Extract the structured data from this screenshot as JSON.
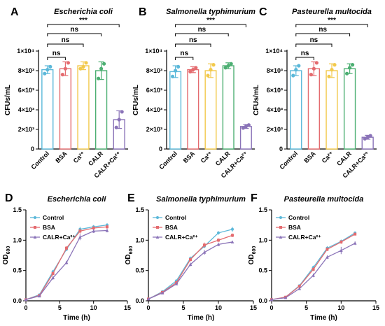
{
  "colors": {
    "Control": "#5bb8d9",
    "BSA": "#e46b6f",
    "Ca2+": "#f2c94c",
    "CALR": "#4caf72",
    "CALR+Ca2+": "#8a73b8"
  },
  "chart_data": [
    {
      "type": "bar",
      "panel": "A",
      "title": "Escherichia coli",
      "ylabel": "CFUs/mL",
      "ylim": [
        0,
        10000
      ],
      "yticks": [
        "0",
        "2×10³",
        "4×10³",
        "6×10³",
        "8×10³",
        "1×10⁴"
      ],
      "categories": [
        "Control",
        "BSA",
        "Ca²⁺",
        "CALR",
        "CALR+Ca²⁺"
      ],
      "values": [
        8100,
        8200,
        8500,
        8000,
        3000
      ],
      "errors": [
        400,
        700,
        400,
        900,
        900
      ],
      "points": [
        [
          7700,
          8100,
          8400
        ],
        [
          7600,
          8200,
          8800
        ],
        [
          8200,
          8400,
          8800
        ],
        [
          7200,
          8200,
          8700
        ],
        [
          2200,
          3000,
          3800
        ]
      ],
      "significance": [
        "ns",
        "ns",
        "ns",
        "***"
      ]
    },
    {
      "type": "bar",
      "panel": "B",
      "title": "Salmonella typhimurium",
      "ylabel": "CFUs/mL",
      "ylim": [
        0,
        10000
      ],
      "yticks": [
        "0",
        "2×10³",
        "4×10³",
        "6×10³",
        "8×10³",
        "1×10⁴"
      ],
      "categories": [
        "Control",
        "BSA",
        "Ca²⁺",
        "CALR",
        "CALR+Ca²⁺"
      ],
      "values": [
        7900,
        8100,
        8000,
        8500,
        2300
      ],
      "errors": [
        600,
        300,
        700,
        300,
        200
      ],
      "points": [
        [
          7400,
          8000,
          8400
        ],
        [
          7900,
          8100,
          8300
        ],
        [
          7500,
          8100,
          8600
        ],
        [
          8300,
          8500,
          8700
        ],
        [
          2150,
          2300,
          2450
        ]
      ],
      "significance": [
        "ns",
        "ns",
        "ns",
        "***"
      ]
    },
    {
      "type": "bar",
      "panel": "C",
      "title": "Pasteurella multocida",
      "ylabel": "CFUs/mL",
      "ylim": [
        0,
        10000
      ],
      "yticks": [
        "0",
        "2×10³",
        "4×10³",
        "6×10³",
        "8×10³",
        "1×10⁴"
      ],
      "categories": [
        "Control",
        "BSA",
        "Ca²⁺",
        "CALR",
        "CALR+Ca²⁺"
      ],
      "values": [
        8000,
        8200,
        8000,
        8200,
        1200
      ],
      "errors": [
        500,
        700,
        700,
        500,
        200
      ],
      "points": [
        [
          7500,
          8100,
          8500
        ],
        [
          7600,
          8200,
          8800
        ],
        [
          7400,
          8100,
          8600
        ],
        [
          7700,
          8300,
          8600
        ],
        [
          1050,
          1200,
          1350
        ]
      ],
      "significance": [
        "ns",
        "ns",
        "ns",
        "***"
      ]
    },
    {
      "type": "line",
      "panel": "D",
      "title": "Escherichia coli",
      "xlabel": "Time (h)",
      "ylabel": "OD600",
      "xlim": [
        0,
        15
      ],
      "ylim": [
        0,
        1.5
      ],
      "xticks": [
        "0",
        "5",
        "10",
        "15"
      ],
      "yticks": [
        "0.0",
        "0.5",
        "1.0",
        "1.5"
      ],
      "x": [
        0,
        2,
        4,
        6,
        8,
        10,
        12
      ],
      "series": [
        {
          "name": "Control",
          "values": [
            0.02,
            0.1,
            0.48,
            0.85,
            1.18,
            1.22,
            1.25
          ],
          "errors": [
            0.01,
            0.01,
            0.03,
            0.03,
            0.04,
            0.03,
            0.03
          ]
        },
        {
          "name": "BSA",
          "values": [
            0.02,
            0.09,
            0.45,
            0.87,
            1.15,
            1.2,
            1.22
          ],
          "errors": [
            0.01,
            0.01,
            0.03,
            0.03,
            0.04,
            0.03,
            0.03
          ]
        },
        {
          "name": "CALR+Ca²⁺",
          "values": [
            0.02,
            0.08,
            0.38,
            0.63,
            1.05,
            1.15,
            1.16
          ],
          "errors": [
            0.01,
            0.01,
            0.03,
            0.03,
            0.05,
            0.03,
            0.03
          ]
        }
      ]
    },
    {
      "type": "line",
      "panel": "E",
      "title": "Salmonella typhimurium",
      "xlabel": "Time (h)",
      "ylabel": "OD600",
      "xlim": [
        0,
        15
      ],
      "ylim": [
        0,
        1.5
      ],
      "xticks": [
        "0",
        "5",
        "10",
        "15"
      ],
      "yticks": [
        "0.0",
        "0.5",
        "1.0",
        "1.5"
      ],
      "x": [
        0,
        2,
        4,
        6,
        8,
        10,
        12
      ],
      "series": [
        {
          "name": "Control",
          "values": [
            0.03,
            0.15,
            0.33,
            0.7,
            0.9,
            1.12,
            1.18
          ],
          "errors": [
            0.01,
            0.01,
            0.02,
            0.03,
            0.03,
            0.03,
            0.04
          ]
        },
        {
          "name": "BSA",
          "values": [
            0.03,
            0.14,
            0.3,
            0.68,
            0.92,
            1.0,
            1.08
          ],
          "errors": [
            0.01,
            0.01,
            0.02,
            0.03,
            0.04,
            0.03,
            0.03
          ]
        },
        {
          "name": "CALR+Ca²⁺",
          "values": [
            0.03,
            0.13,
            0.28,
            0.6,
            0.8,
            0.93,
            0.97
          ],
          "errors": [
            0.01,
            0.01,
            0.02,
            0.03,
            0.04,
            0.03,
            0.02
          ]
        }
      ]
    },
    {
      "type": "line",
      "panel": "F",
      "title": "Pasteurella multocida",
      "xlabel": "Time (h)",
      "ylabel": "OD600",
      "xlim": [
        0,
        15
      ],
      "ylim": [
        0,
        1.5
      ],
      "xticks": [
        "0",
        "5",
        "10",
        "15"
      ],
      "yticks": [
        "0.0",
        "0.5",
        "1.0",
        "1.5"
      ],
      "x": [
        0,
        2,
        4,
        6,
        8,
        10,
        12
      ],
      "series": [
        {
          "name": "Control",
          "values": [
            0.02,
            0.06,
            0.25,
            0.55,
            0.87,
            0.98,
            1.12
          ],
          "errors": [
            0.01,
            0.01,
            0.02,
            0.03,
            0.03,
            0.03,
            0.02
          ]
        },
        {
          "name": "BSA",
          "values": [
            0.02,
            0.06,
            0.24,
            0.52,
            0.85,
            0.97,
            1.1
          ],
          "errors": [
            0.01,
            0.01,
            0.02,
            0.03,
            0.03,
            0.03,
            0.02
          ]
        },
        {
          "name": "CALR+Ca²⁺",
          "values": [
            0.02,
            0.05,
            0.2,
            0.42,
            0.72,
            0.83,
            0.95
          ],
          "errors": [
            0.01,
            0.01,
            0.02,
            0.03,
            0.03,
            0.06,
            0.03
          ]
        }
      ]
    }
  ]
}
